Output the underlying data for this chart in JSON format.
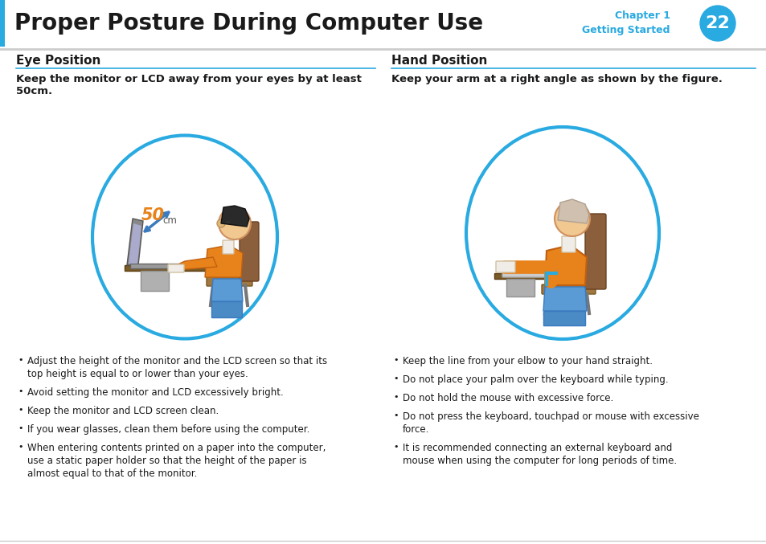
{
  "title": "Proper Posture During Computer Use",
  "chapter_label": "Chapter 1",
  "chapter_sub": "Getting Started",
  "page_num": "22",
  "header_blue": "#29aae1",
  "left_section_title": "Eye Position",
  "left_section_subtitle": "Keep the monitor or LCD away from your eyes by at least\n50cm.",
  "right_section_title": "Hand Position",
  "right_section_subtitle": "Keep your arm at a right angle as shown by the figure.",
  "left_bullets": [
    "Adjust the height of the monitor and the LCD screen so that its\ntop height is equal to or lower than your eyes.",
    "Avoid setting the monitor and LCD excessively bright.",
    "Keep the monitor and LCD screen clean.",
    "If you wear glasses, clean them before using the computer.",
    "When entering contents printed on a paper into the computer,\nuse a static paper holder so that the height of the paper is\nalmost equal to that of the monitor."
  ],
  "right_bullets": [
    "Keep the line from your elbow to your hand straight.",
    "Do not place your palm over the keyboard while typing.",
    "Do not hold the mouse with excessive force.",
    "Do not press the keyboard, touchpad or mouse with excessive\nforce.",
    "It is recommended connecting an external keyboard and\nmouse when using the computer for long periods of time."
  ],
  "bg_color": "#ffffff",
  "text_color": "#231f20",
  "divider_color": "#29aae1"
}
